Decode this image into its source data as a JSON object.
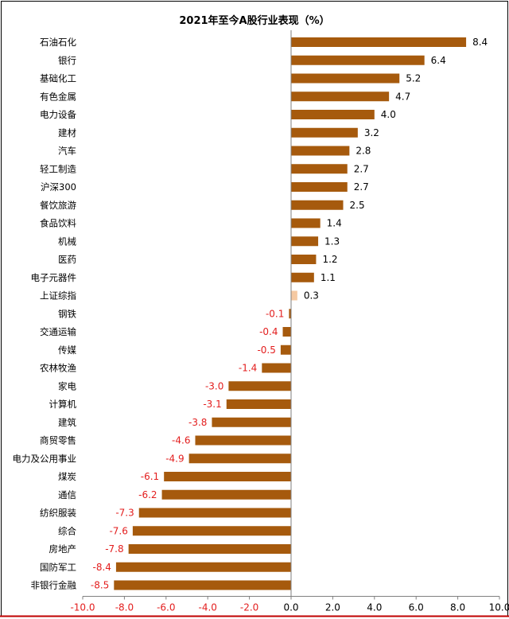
{
  "chart_data": {
    "type": "bar",
    "orientation": "horizontal",
    "title": "2021年至今A股行业表现（%）",
    "categories": [
      "石油石化",
      "银行",
      "基础化工",
      "有色金属",
      "电力设备",
      "建材",
      "汽车",
      "轻工制造",
      "沪深300",
      "餐饮旅游",
      "食品饮料",
      "机械",
      "医药",
      "电子元器件",
      "上证综指",
      "钢铁",
      "交通运输",
      "传媒",
      "农林牧渔",
      "家电",
      "计算机",
      "建筑",
      "商贸零售",
      "电力及公用事业",
      "煤炭",
      "通信",
      "纺织服装",
      "综合",
      "房地产",
      "国防军工",
      "非银行金融"
    ],
    "values": [
      8.4,
      6.4,
      5.2,
      4.7,
      4.0,
      3.2,
      2.8,
      2.7,
      2.7,
      2.5,
      1.4,
      1.3,
      1.2,
      1.1,
      0.3,
      -0.1,
      -0.4,
      -0.5,
      -1.4,
      -3.0,
      -3.1,
      -3.8,
      -4.6,
      -4.9,
      -6.1,
      -6.2,
      -7.3,
      -7.6,
      -7.8,
      -8.4,
      -8.5
    ],
    "value_labels": [
      "8.4",
      "6.4",
      "5.2",
      "4.7",
      "4.0",
      "3.2",
      "2.8",
      "2.7",
      "2.7",
      "2.5",
      "1.4",
      "1.3",
      "1.2",
      "1.1",
      "0.3",
      "-0.1",
      "-0.4",
      "-0.5",
      "-1.4",
      "-3.0",
      "-3.1",
      "-3.8",
      "-4.6",
      "-4.9",
      "-6.1",
      "-6.2",
      "-7.3",
      "-7.6",
      "-7.8",
      "-8.4",
      "-8.5"
    ],
    "highlight_category": "上证综指",
    "xlim": [
      -10.0,
      10.0
    ],
    "xticks": [
      -10.0,
      -8.0,
      -6.0,
      -4.0,
      -2.0,
      0.0,
      2.0,
      4.0,
      6.0,
      8.0,
      10.0
    ],
    "xtick_labels": [
      "-10.0",
      "-8.0",
      "-6.0",
      "-4.0",
      "-2.0",
      "0.0",
      "2.0",
      "4.0",
      "6.0",
      "8.0",
      "10.0"
    ],
    "grid": false,
    "legend": "none",
    "colors": {
      "bar": "#A65A0D",
      "highlight_bar": "#F5C9A2",
      "negative_label": "#E31E1E",
      "positive_label": "#000000",
      "negative_tick": "#E31E1E",
      "positive_tick": "#000000",
      "axis": "#7F7F7F",
      "frame": "#000000",
      "bottom_rule": "#C00000"
    }
  }
}
